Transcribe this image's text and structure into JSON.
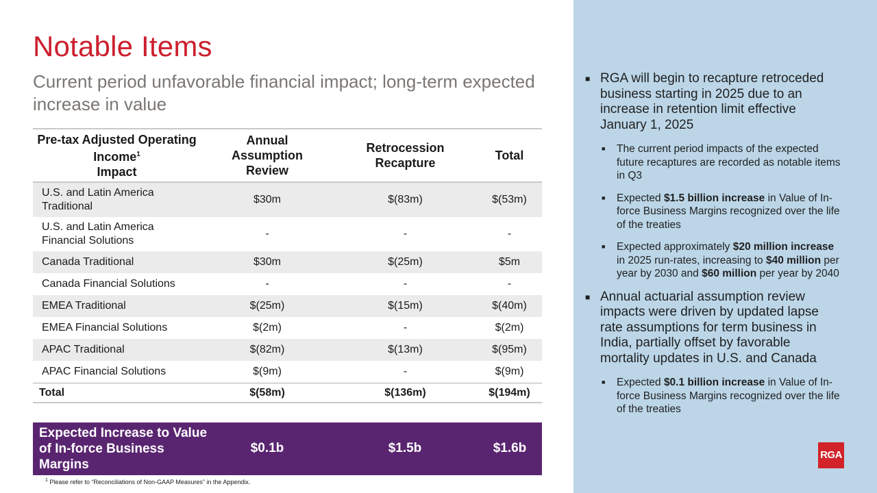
{
  "title": "Notable Items",
  "subtitle": "Current period unfavorable financial impact; long-term expected increase in value",
  "table": {
    "headers": {
      "col1": "Pre-tax Adjusted Operating Income",
      "col1_sup": "1",
      "col1_suffix": "Impact",
      "col2": "Annual Assumption Review",
      "col3": "Retrocession Recapture",
      "col4": "Total"
    },
    "rows": [
      {
        "label": "U.S. and Latin America Traditional",
        "review": "$30m",
        "recapture": "$(83m)",
        "total": "$(53m)"
      },
      {
        "label": "U.S. and Latin America Financial Solutions",
        "review": "-",
        "recapture": "-",
        "total": "-"
      },
      {
        "label": "Canada Traditional",
        "review": "$30m",
        "recapture": "$(25m)",
        "total": "$5m"
      },
      {
        "label": "Canada Financial Solutions",
        "review": "-",
        "recapture": "-",
        "total": "-"
      },
      {
        "label": "EMEA Traditional",
        "review": "$(25m)",
        "recapture": "$(15m)",
        "total": "$(40m)"
      },
      {
        "label": "EMEA Financial Solutions",
        "review": "$(2m)",
        "recapture": "-",
        "total": "$(2m)"
      },
      {
        "label": "APAC Traditional",
        "review": "$(82m)",
        "recapture": "$(13m)",
        "total": "$(95m)"
      },
      {
        "label": "APAC Financial Solutions",
        "review": "$(9m)",
        "recapture": "-",
        "total": "$(9m)"
      }
    ],
    "total_row": {
      "label": "Total",
      "review": "$(58m)",
      "recapture": "$(136m)",
      "total": "$(194m)"
    }
  },
  "expected_increase": {
    "label": "Expected Increase to Value of In-force Business Margins",
    "review": "$0.1b",
    "recapture": "$1.5b",
    "total": "$1.6b"
  },
  "footnote": {
    "sup": "1",
    "text": "Please refer to “Reconciliations  of Non-GAAP Measures” in the Appendix."
  },
  "bullets": {
    "b1": "RGA will begin to recapture retroceded business starting in 2025 due to an increase in retention limit effective January 1, 2025",
    "b1_sub1": "The current period impacts of the expected future recaptures are recorded as notable items in Q3",
    "b1_sub2_pre": "Expected ",
    "b1_sub2_bold": "$1.5 billion increase",
    "b1_sub2_post": " in Value of In-force Business Margins recognized over the life of the treaties",
    "b1_sub3_pre": "Expected approximately ",
    "b1_sub3_bold1": "$20 million increase",
    "b1_sub3_mid": " in 2025 run-rates, increasing to ",
    "b1_sub3_bold2": "$40 million",
    "b1_sub3_mid2": " per year by 2030 and ",
    "b1_sub3_bold3": "$60 million",
    "b1_sub3_post": " per year by 2040",
    "b2": "Annual actuarial assumption review impacts were driven by updated lapse rate assumptions for term business in India, partially offset by favorable mortality updates in U.S. and Canada",
    "b2_sub1_pre": "Expected ",
    "b2_sub1_bold": "$0.1 billion increase",
    "b2_sub1_post": " in Value of In-force Business Margins recognized over the life of the treaties"
  },
  "logo": "RGA",
  "colors": {
    "title": "#cc1f2d",
    "panel": "#bcd6e8",
    "purple": "#5a2570",
    "logo": "#d2232a"
  }
}
